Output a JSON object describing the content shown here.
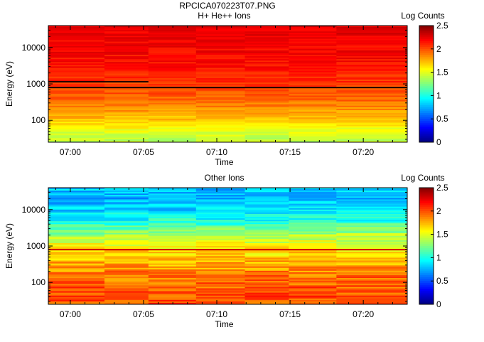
{
  "figure_title": "RPCICA070223T07.PNG",
  "chart_data": [
    {
      "type": "heatmap",
      "title": "H+ He++ Ions",
      "xlabel": "Time",
      "ylabel": "Energy (eV)",
      "yscale": "log",
      "ylim": [
        25,
        40000
      ],
      "x_tick_labels": [
        "07:00",
        "07:05",
        "07:10",
        "07:15",
        "07:20"
      ],
      "y_tick_labels": [
        "100",
        "1000",
        "10000"
      ],
      "colorbar": {
        "label": "Log Counts",
        "min": 0,
        "max": 2.5,
        "ticks": [
          "0",
          "0.5",
          "1",
          "1.5",
          "2",
          "2.5"
        ]
      },
      "time_columns": [
        "06:58:30",
        "07:02:20",
        "07:05:20",
        "07:08:35",
        "07:11:55",
        "07:14:55",
        "07:18:10"
      ],
      "profile": [
        {
          "energy": 40000,
          "log_counts": 2.25
        },
        {
          "energy": 10000,
          "log_counts": 2.2
        },
        {
          "energy": 3000,
          "log_counts": 2.15
        },
        {
          "energy": 1000,
          "log_counts": 2.05
        },
        {
          "energy": 300,
          "log_counts": 1.9
        },
        {
          "energy": 100,
          "log_counts": 1.7
        },
        {
          "energy": 50,
          "log_counts": 1.5
        },
        {
          "energy": 30,
          "log_counts": 1.4
        }
      ],
      "dark_lines": [
        {
          "energy": 760
        },
        {
          "energy": 1100,
          "until_column": 1
        }
      ]
    },
    {
      "type": "heatmap",
      "title": "Other Ions",
      "xlabel": "Time",
      "ylabel": "Energy (eV)",
      "yscale": "log",
      "ylim": [
        25,
        40000
      ],
      "x_tick_labels": [
        "07:00",
        "07:05",
        "07:10",
        "07:15",
        "07:20"
      ],
      "y_tick_labels": [
        "100",
        "1000",
        "10000"
      ],
      "colorbar": {
        "label": "Log Counts",
        "min": 0,
        "max": 2.5,
        "ticks": [
          "0",
          "0.5",
          "1",
          "1.5",
          "2",
          "2.5"
        ]
      },
      "time_columns": [
        "06:58:30",
        "07:02:20",
        "07:05:20",
        "07:08:35",
        "07:11:55",
        "07:14:55",
        "07:18:10"
      ],
      "profile": [
        {
          "energy": 40000,
          "log_counts": 0.8
        },
        {
          "energy": 20000,
          "log_counts": 0.75
        },
        {
          "energy": 10000,
          "log_counts": 0.85
        },
        {
          "energy": 5000,
          "log_counts": 1.0
        },
        {
          "energy": 2000,
          "log_counts": 1.35
        },
        {
          "energy": 1000,
          "log_counts": 1.55
        },
        {
          "energy": 500,
          "log_counts": 1.7
        },
        {
          "energy": 200,
          "log_counts": 1.85
        },
        {
          "energy": 100,
          "log_counts": 1.95
        },
        {
          "energy": 30,
          "log_counts": 2.0
        }
      ],
      "bright_lines": [
        {
          "energy": 760
        }
      ]
    }
  ]
}
